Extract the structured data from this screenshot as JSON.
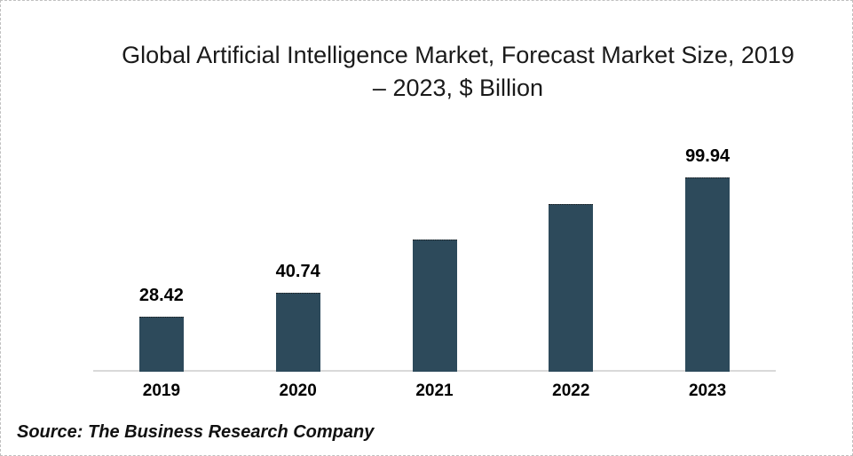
{
  "header": {
    "title_line1": "Global Artificial Intelligence Market, Forecast Market Size, 2019",
    "title_line2": "– 2023, $ Billion"
  },
  "footer": {
    "source": "Source: The Business Research Company"
  },
  "colors": {
    "bar": "#2d4a5b",
    "axis_line": "#d9d9d9",
    "frame_border": "#c0c0c0",
    "text": "#000000"
  },
  "chart_data": {
    "type": "bar",
    "title": "Global Artificial Intelligence Market, Forecast Market Size, 2019 – 2023, $ Billion",
    "categories": [
      "2019",
      "2020",
      "2021",
      "2022",
      "2023"
    ],
    "values": [
      28.42,
      40.74,
      68,
      86,
      99.94
    ],
    "data_labels": [
      "28.42",
      "40.74",
      "",
      "",
      "99.94"
    ],
    "xlabel": "",
    "ylabel": "$ Billion",
    "ylim": [
      0,
      110
    ],
    "grid": false,
    "legend": false,
    "source": "Source: The Business Research Company"
  }
}
